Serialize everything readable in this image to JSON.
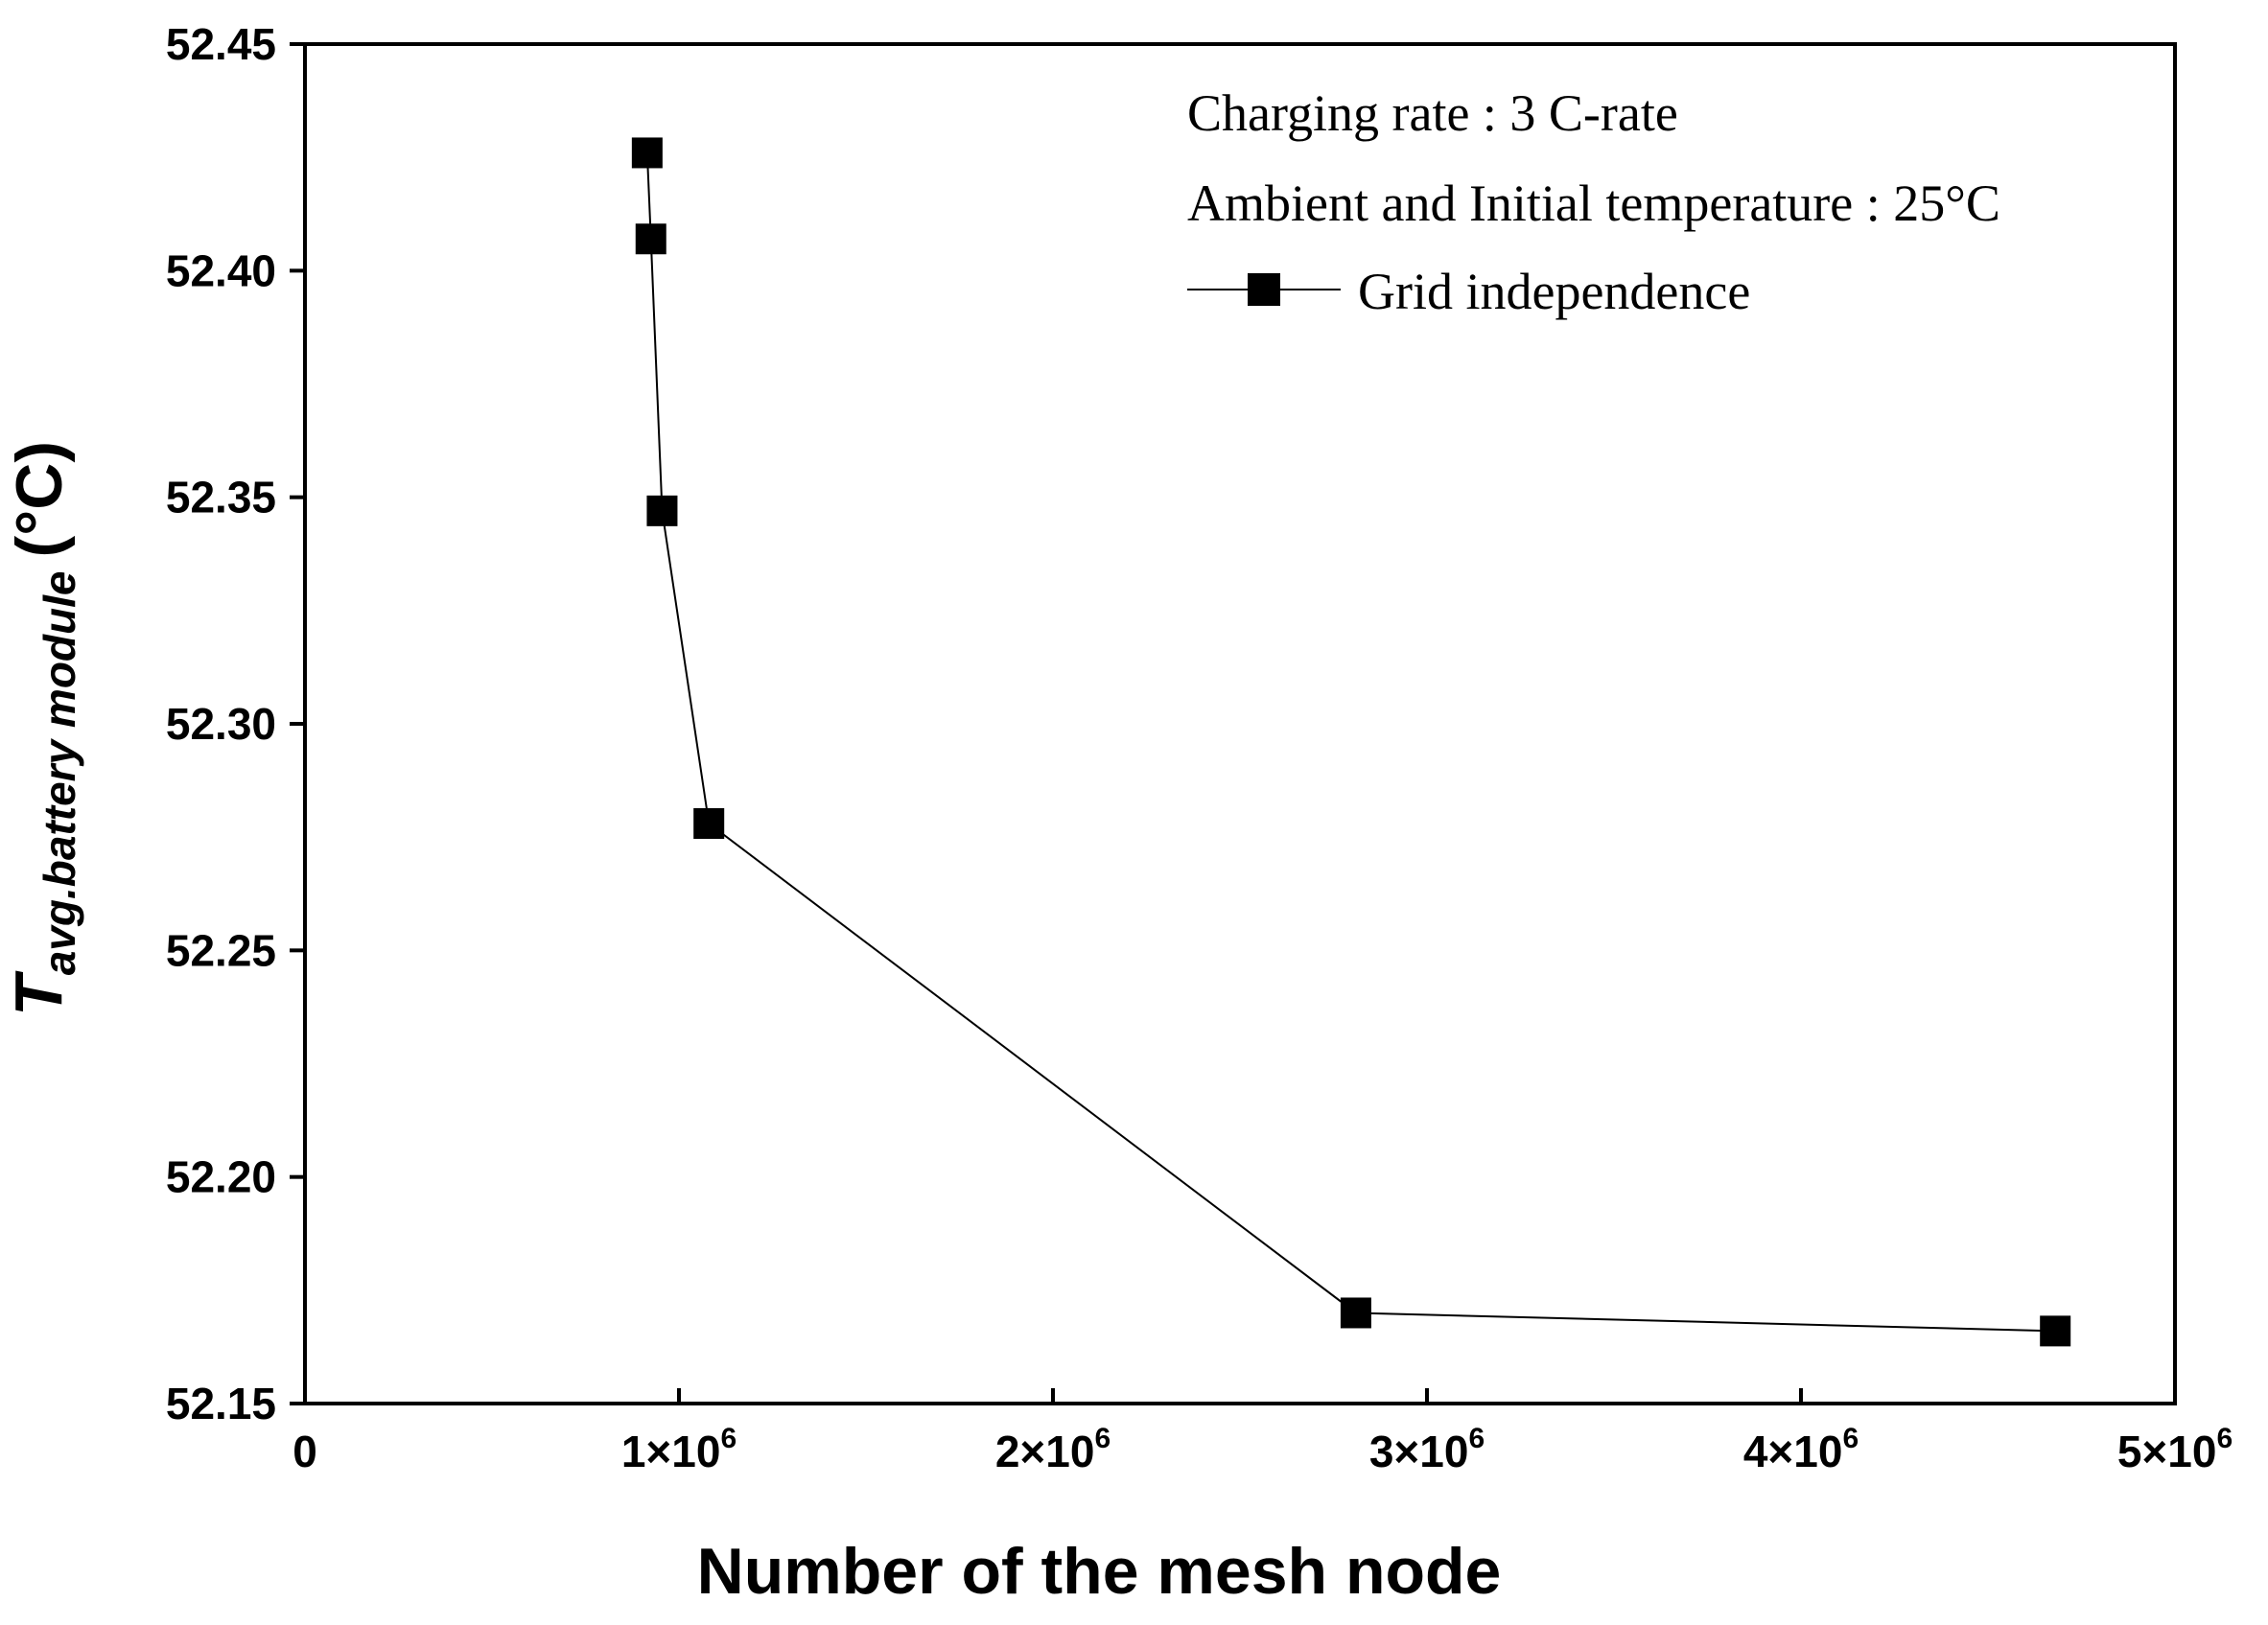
{
  "chart_data": {
    "type": "line",
    "title": "",
    "xlabel": "Number of the mesh node",
    "ylabel": {
      "symbol": "T",
      "subscript": "avg.battery module",
      "unit": "(°C)"
    },
    "xlim": [
      0,
      5000000
    ],
    "ylim": [
      52.15,
      52.45
    ],
    "x_ticks": [
      {
        "value": 0,
        "base": "0",
        "exp": ""
      },
      {
        "value": 1000000,
        "base": "1×10",
        "exp": "6"
      },
      {
        "value": 2000000,
        "base": "2×10",
        "exp": "6"
      },
      {
        "value": 3000000,
        "base": "3×10",
        "exp": "6"
      },
      {
        "value": 4000000,
        "base": "4×10",
        "exp": "6"
      },
      {
        "value": 5000000,
        "base": "5×10",
        "exp": "6"
      }
    ],
    "y_ticks": [
      {
        "value": 52.15,
        "label": "52.15"
      },
      {
        "value": 52.2,
        "label": "52.20"
      },
      {
        "value": 52.25,
        "label": "52.25"
      },
      {
        "value": 52.3,
        "label": "52.30"
      },
      {
        "value": 52.35,
        "label": "52.35"
      },
      {
        "value": 52.4,
        "label": "52.40"
      },
      {
        "value": 52.45,
        "label": "52.45"
      }
    ],
    "series": [
      {
        "name": "Grid independence",
        "marker": "square",
        "color": "#000000",
        "x": [
          915000,
          925000,
          955000,
          1080000,
          2810000,
          4680000
        ],
        "y": [
          52.426,
          52.407,
          52.347,
          52.278,
          52.17,
          52.166
        ]
      }
    ],
    "annotations": [
      "Charging rate : 3 C-rate",
      "Ambient and Initial temperature : 25°C"
    ],
    "legend_position": "top-right",
    "grid": false
  }
}
